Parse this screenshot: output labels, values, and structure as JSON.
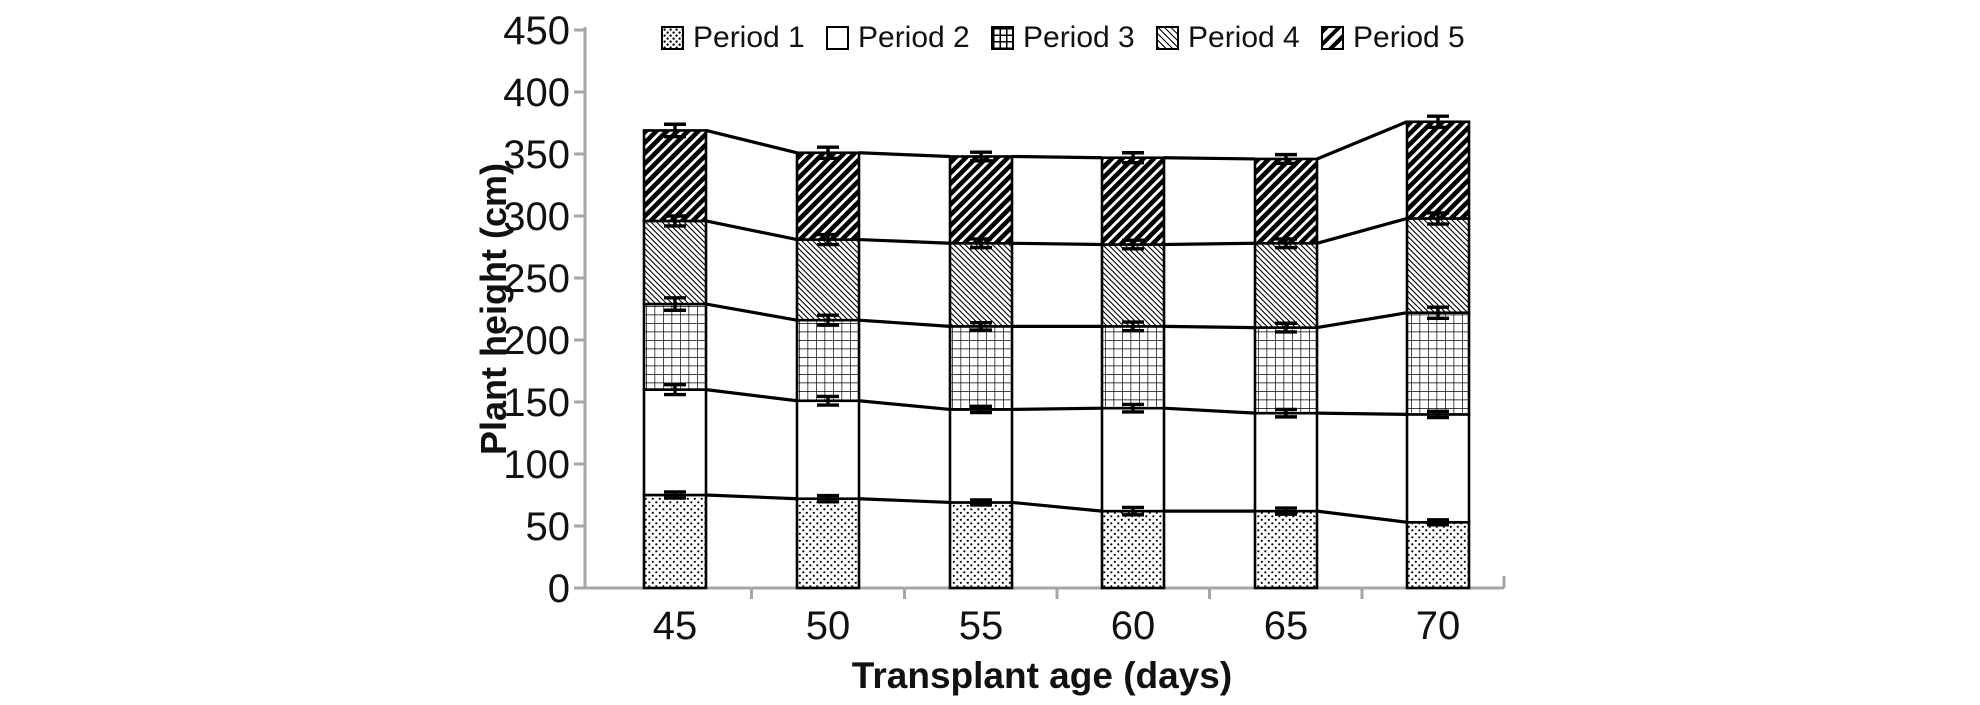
{
  "chart_data": {
    "type": "bar",
    "stacked": true,
    "title": "",
    "xlabel": "Transplant age (days)",
    "ylabel": "Plant height (cm)",
    "categories": [
      "45",
      "50",
      "55",
      "60",
      "65",
      "70"
    ],
    "ylim": [
      0,
      450
    ],
    "y_ticks": [
      0,
      50,
      100,
      150,
      200,
      250,
      300,
      350,
      400,
      450
    ],
    "grid": false,
    "legend_position": "top",
    "series_lines": true,
    "error_bars": true,
    "series": [
      {
        "name": "Period 1",
        "pattern": "dots",
        "values": [
          75,
          72,
          69,
          62,
          62,
          53
        ],
        "errors": [
          2.5,
          2.5,
          2,
          3,
          2.5,
          2
        ]
      },
      {
        "name": "Period 2",
        "pattern": "none",
        "values": [
          85,
          79,
          75,
          83,
          79,
          87
        ],
        "errors": [
          4,
          3.5,
          2.5,
          3,
          3,
          2.5
        ]
      },
      {
        "name": "Period 3",
        "pattern": "grid",
        "values": [
          69,
          65,
          67,
          66,
          69,
          82
        ],
        "errors": [
          5,
          4,
          3,
          3.5,
          3.5,
          4.5
        ]
      },
      {
        "name": "Period 4",
        "pattern": "light-down-diagonal",
        "values": [
          67,
          65,
          67,
          66,
          68,
          76
        ],
        "errors": [
          4,
          4,
          3.5,
          3.5,
          3.5,
          4.5
        ]
      },
      {
        "name": "Period 5",
        "pattern": "wide-up-diagonal",
        "values": [
          73,
          70,
          70,
          70,
          68,
          78
        ],
        "errors": [
          5,
          4.5,
          3.5,
          4,
          3.5,
          4.5
        ]
      }
    ],
    "colors": {
      "bar_outline": "#000000",
      "series_line": "#000000",
      "error_bar": "#000000",
      "axis": "#a6a6a6",
      "text": "#111111",
      "background": "#ffffff"
    }
  }
}
